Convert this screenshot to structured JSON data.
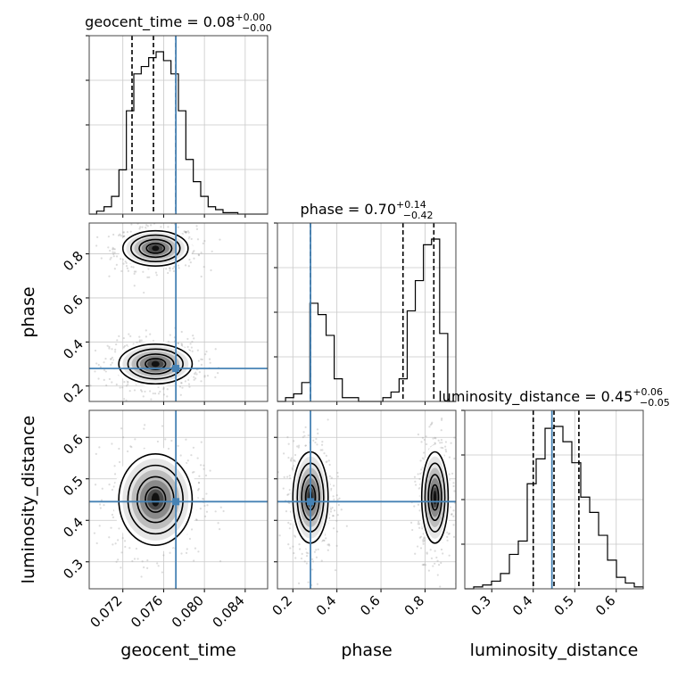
{
  "chart_data": {
    "type": "corner",
    "parameters": [
      {
        "name": "geocent_time",
        "title_text": "geocent_time = 0.08",
        "title_sup": "+0.00",
        "title_sub": "−0.00",
        "range": [
          0.0687,
          0.0862
        ],
        "ticks": [
          0.072,
          0.076,
          0.08,
          0.084
        ],
        "tick_labels": [
          "0.072",
          "0.076",
          "0.080",
          "0.084"
        ],
        "quantiles": [
          0.0729,
          0.075,
          0.0772
        ],
        "truth": 0.0772,
        "hist_counts": [
          0,
          2,
          5,
          12,
          30,
          70,
          95,
          100,
          106,
          110,
          104,
          95,
          70,
          37,
          22,
          12,
          5,
          3,
          1,
          1,
          0,
          0,
          0,
          0
        ]
      },
      {
        "name": "phase",
        "title_text": "phase = 0.70",
        "title_sup": "+0.14",
        "title_sub": "−0.42",
        "range": [
          0.13,
          0.94
        ],
        "ticks": [
          0.2,
          0.4,
          0.6,
          0.8
        ],
        "tick_labels": [
          "0.2",
          "0.4",
          "0.6",
          "0.8"
        ],
        "quantiles": [
          0.28,
          0.7,
          0.84
        ],
        "truth": 0.28,
        "hist_counts": [
          0,
          2,
          4,
          10,
          52,
          46,
          35,
          12,
          2,
          2,
          0,
          0,
          0,
          2,
          5,
          12,
          48,
          64,
          83,
          86,
          36,
          0
        ]
      },
      {
        "name": "luminosity_distance",
        "title_text": "luminosity_distance = 0.45",
        "title_sup": "+0.06",
        "title_sub": "−0.05",
        "range": [
          0.235,
          0.665
        ],
        "ticks": [
          0.3,
          0.4,
          0.5,
          0.6
        ],
        "tick_labels": [
          "0.3",
          "0.4",
          "0.5",
          "0.6"
        ],
        "quantiles": [
          0.4,
          0.45,
          0.51
        ],
        "truth": 0.445,
        "hist_counts": [
          0,
          1,
          2,
          4,
          8,
          18,
          25,
          55,
          68,
          84,
          85,
          77,
          66,
          48,
          40,
          28,
          15,
          6,
          3,
          1
        ]
      }
    ],
    "pairs": [
      {
        "x": "geocent_time",
        "y": "phase",
        "modes": [
          {
            "center": [
              0.0752,
              0.825
            ],
            "spread": [
              0.0016,
              0.04
            ]
          },
          {
            "center": [
              0.0752,
              0.3
            ],
            "spread": [
              0.0018,
              0.045
            ]
          }
        ]
      },
      {
        "x": "geocent_time",
        "y": "luminosity_distance",
        "modes": [
          {
            "center": [
              0.0752,
              0.45
            ],
            "spread": [
              0.0018,
              0.055
            ]
          }
        ]
      },
      {
        "x": "phase",
        "y": "luminosity_distance",
        "modes": [
          {
            "center": [
              0.28,
              0.455
            ],
            "spread": [
              0.04,
              0.055
            ]
          },
          {
            "center": [
              0.845,
              0.455
            ],
            "spread": [
              0.03,
              0.055
            ]
          }
        ]
      }
    ],
    "colors": {
      "truth": "#4682b4",
      "hist": "#000000",
      "grid": "#c8c8c8",
      "points": "#9a9a9a"
    },
    "grid": true
  }
}
